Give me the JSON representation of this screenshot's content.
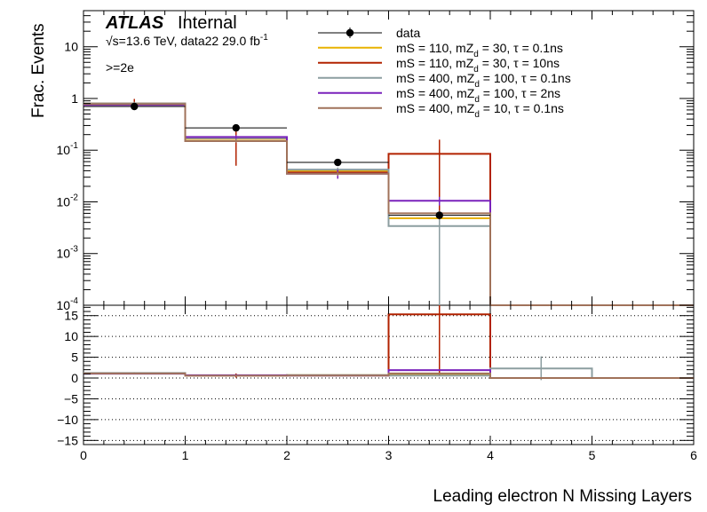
{
  "header": {
    "atlas": "ATLAS",
    "internal": "Internal",
    "energy": "√s=13.6 TeV, data22 29.0 fb",
    "energy_sup": "-1",
    "selection": ">=2e"
  },
  "chart_data": {
    "type": "histogram",
    "xlabel": "Leading electron N Missing Layers",
    "ylabel": "Frac. Events",
    "x_edges": [
      0,
      1,
      2,
      3,
      4,
      5,
      6
    ],
    "xlim": [
      0,
      6
    ],
    "xticks": [
      "0",
      "1",
      "2",
      "3",
      "4",
      "5",
      "6"
    ],
    "top_panel": {
      "yscale": "log",
      "ylim": [
        0.0001,
        50
      ],
      "yticks": [
        {
          "base": "10",
          "exp": "-4",
          "value": 0.0001
        },
        {
          "base": "10",
          "exp": "-3",
          "value": 0.001
        },
        {
          "base": "10",
          "exp": "-2",
          "value": 0.01
        },
        {
          "base": "10",
          "exp": "-1",
          "value": 0.1
        },
        {
          "base": "1",
          "exp": "",
          "value": 1
        },
        {
          "base": "10",
          "exp": "",
          "value": 10
        }
      ],
      "data": {
        "name": "data",
        "color": "#000000",
        "x": [
          0.5,
          1.5,
          2.5,
          3.5
        ],
        "y": [
          0.7,
          0.27,
          0.058,
          0.0055
        ],
        "yerr_low": [
          0.62,
          0.23,
          0.053,
          0.0048
        ],
        "yerr_high": [
          0.78,
          0.31,
          0.063,
          0.0063
        ]
      },
      "series": [
        {
          "name": "mS = 110, mZ = 30, τ = 0.1ns",
          "sub": "d",
          "color": "#e8b200",
          "values": [
            0.8,
            0.165,
            0.04,
            0.0048,
            0.0001,
            0.0001
          ],
          "errors": [
            [
              0.72,
              0.88
            ],
            [
              0.15,
              0.18
            ],
            [
              0.036,
              0.044
            ],
            [
              0.0042,
              0.0054
            ],
            null,
            null
          ]
        },
        {
          "name": "mS = 110, mZ = 30, τ = 10ns",
          "sub": "d",
          "color": "#b22200",
          "values": [
            0.8,
            0.17,
            0.037,
            0.085,
            0.0001,
            0.0001
          ],
          "errors": [
            [
              0.62,
              0.98
            ],
            [
              0.05,
              0.29
            ],
            [
              0.03,
              0.044
            ],
            [
              0.0001,
              0.16
            ],
            null,
            null
          ]
        },
        {
          "name": "mS = 400, mZ = 100, τ = 0.1ns",
          "sub": "d",
          "color": "#8c9ea0",
          "values": [
            0.8,
            0.17,
            0.042,
            0.0034,
            0.0001,
            0.0001
          ],
          "errors": [
            [
              0.74,
              0.86
            ],
            [
              0.155,
              0.185
            ],
            [
              0.038,
              0.046
            ],
            [
              0.0001,
              0.0046
            ],
            null,
            null
          ]
        },
        {
          "name": "mS = 400, mZ = 100, τ = 2ns",
          "sub": "d",
          "color": "#7a22bb",
          "values": [
            0.75,
            0.18,
            0.035,
            0.0105,
            0.0001,
            0.0001
          ],
          "errors": [
            [
              0.7,
              0.8
            ],
            [
              0.165,
              0.195
            ],
            [
              0.028,
              0.042
            ],
            [
              0.0085,
              0.0125
            ],
            null,
            null
          ]
        },
        {
          "name": "mS = 400, mZ = 10, τ = 0.1ns",
          "sub": "d",
          "color": "#a0725a",
          "values": [
            0.78,
            0.15,
            0.035,
            0.006,
            0.0001,
            0.0001
          ],
          "errors": [
            [
              0.72,
              0.84
            ],
            [
              0.14,
              0.16
            ],
            [
              0.032,
              0.038
            ],
            [
              0.0052,
              0.0068
            ],
            null,
            null
          ]
        }
      ]
    },
    "ratio_panel": {
      "ylim": [
        -16,
        17.5
      ],
      "yticks": [
        -15,
        -10,
        -5,
        0,
        5,
        10,
        15
      ],
      "ytick_labels": [
        "−15",
        "−10",
        "−5",
        "0",
        "5",
        "10",
        "15"
      ],
      "grid": "dotted",
      "series": [
        {
          "color": "#e8b200",
          "values": [
            1.15,
            0.65,
            0.7,
            0.9,
            0,
            0
          ]
        },
        {
          "color": "#b22200",
          "values": [
            1.15,
            0.62,
            0.64,
            15.3,
            0,
            0
          ],
          "errors": [
            [
              0.9,
              1.4
            ],
            [
              0.1,
              1.1
            ],
            null,
            [
              0.5,
              28
            ],
            null,
            null
          ]
        },
        {
          "color": "#8c9ea0",
          "values": [
            1.2,
            0.65,
            0.7,
            0.6,
            2.3,
            0
          ],
          "errors": [
            null,
            null,
            null,
            null,
            [
              -0.5,
              5.2
            ],
            null
          ]
        },
        {
          "color": "#7a22bb",
          "values": [
            1.05,
            0.67,
            0.6,
            1.9,
            0,
            0
          ]
        },
        {
          "color": "#a0725a",
          "values": [
            1.1,
            0.55,
            0.6,
            1.1,
            0,
            0
          ]
        }
      ]
    }
  }
}
